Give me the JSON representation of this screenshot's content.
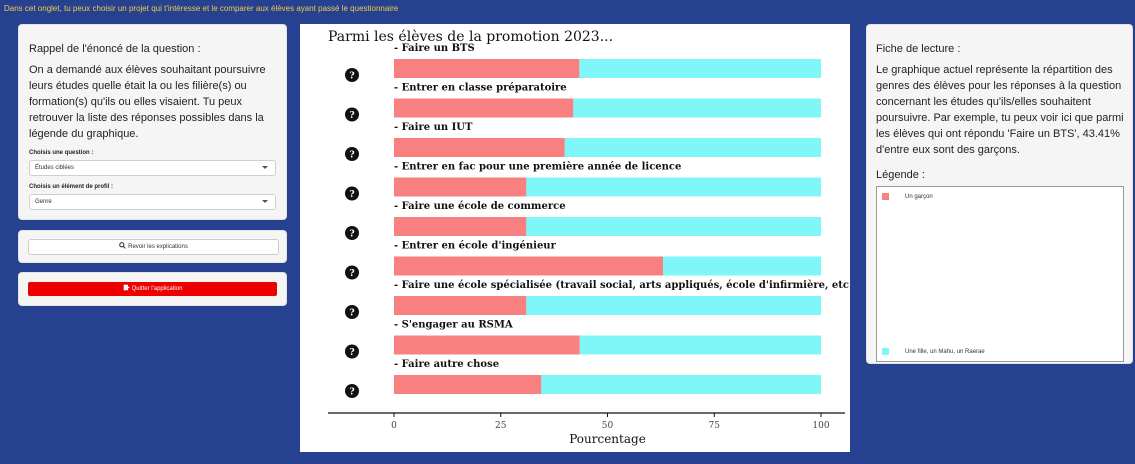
{
  "header": {
    "intro": "Dans cet onglet, tu peux choisir un projet qui t'intéresse et le comparer aux élèves ayant passé le questionnaire"
  },
  "left_panel": {
    "title": "Rappel de l'énoncé de la question :",
    "text": "On a demandé aux élèves souhaitant poursuivre leurs études quelle était la ou les filière(s) ou formation(s) qu'ils ou elles visaient. Tu peux retrouver la liste des réponses possibles dans la légende du graphique.",
    "question_label": "Choisis une question :",
    "question_value": "Études ciblées",
    "profile_label": "Choisis un élément de profil :",
    "profile_value": "Genre"
  },
  "buttons": {
    "explain": "Revoir les explications",
    "quit": "Quitter l'application"
  },
  "colors": {
    "garcon": "#f88080",
    "fille": "#7ff7f9",
    "background": "#26418f",
    "quit": "#ee0000"
  },
  "chart_data": {
    "type": "bar",
    "stacked": true,
    "orientation": "horizontal",
    "title": "Parmi les élèves de la promotion 2023...",
    "xlabel": "Pourcentage",
    "xlim": [
      0,
      100
    ],
    "xticks": [
      0,
      25,
      50,
      75,
      100
    ],
    "categories": [
      "- Faire un BTS",
      "- Entrer en classe préparatoire",
      "- Faire un IUT",
      "- Entrer en fac pour une première année de licence",
      "- Faire une école de commerce",
      "- Entrer en école d'ingénieur",
      "- Faire une école spécialisée (travail social, arts appliqués, école d'infirmière, etc.)",
      "- S'engager au RSMA",
      "- Faire autre chose"
    ],
    "series": [
      {
        "name": "Un garçon",
        "values": [
          43.41,
          42,
          40,
          31,
          31,
          63,
          31,
          43.5,
          34.5
        ]
      },
      {
        "name": "Une fille, un Mahu, un Raerae",
        "values": [
          56.59,
          58,
          60,
          69,
          69,
          37,
          69,
          56.5,
          65.5
        ]
      }
    ],
    "help_icon": "question-mark-icon"
  },
  "right_panel": {
    "title": "Fiche de lecture :",
    "text": "Le graphique actuel représente la répartition des genres des élèves pour les réponses à la question concernant les études qu'ils/elles souhaitent poursuivre. Par exemple, tu peux voir ici que parmi les élèves qui ont répondu 'Faire un BTS', 43.41% d'entre eux sont des garçons.",
    "legend_title": "Légende :",
    "legend_items": [
      "Un garçon",
      "Une fille, un Mahu, un Raerae"
    ]
  }
}
